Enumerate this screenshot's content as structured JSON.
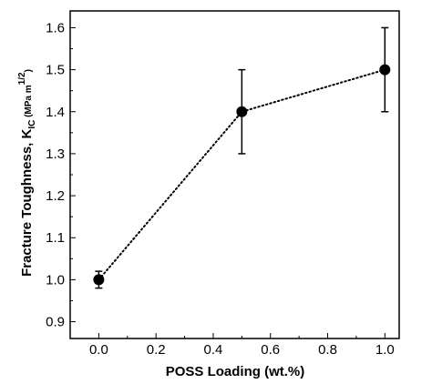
{
  "chart_data": {
    "type": "scatter",
    "title": "",
    "xlabel": "POSS Loading (wt.%)",
    "ylabel": {
      "main": "Fracture Toughness, K",
      "subscript": "IC",
      "unit_open": " (MPa m",
      "unit_sup": "1/2",
      "unit_close": ")"
    },
    "xlim": [
      -0.1,
      1.05
    ],
    "ylim": [
      0.86,
      1.64
    ],
    "x_ticks": [
      0.0,
      0.2,
      0.4,
      0.6,
      0.8,
      1.0
    ],
    "x_tick_labels": [
      "0.0",
      "0.2",
      "0.4",
      "0.6",
      "0.8",
      "1.0"
    ],
    "y_ticks": [
      0.9,
      1.0,
      1.1,
      1.2,
      1.3,
      1.4,
      1.5,
      1.6
    ],
    "y_tick_labels": [
      "0.9",
      "1.0",
      "1.1",
      "1.2",
      "1.3",
      "1.4",
      "1.5",
      "1.6"
    ],
    "grid": false,
    "series": [
      {
        "x": [
          0.0,
          0.5,
          1.0
        ],
        "y": [
          1.0,
          1.4,
          1.5
        ],
        "error": [
          0.02,
          0.1,
          0.1
        ],
        "line_style": "dotted",
        "marker": "filled-circle",
        "color": "#000000"
      }
    ]
  }
}
